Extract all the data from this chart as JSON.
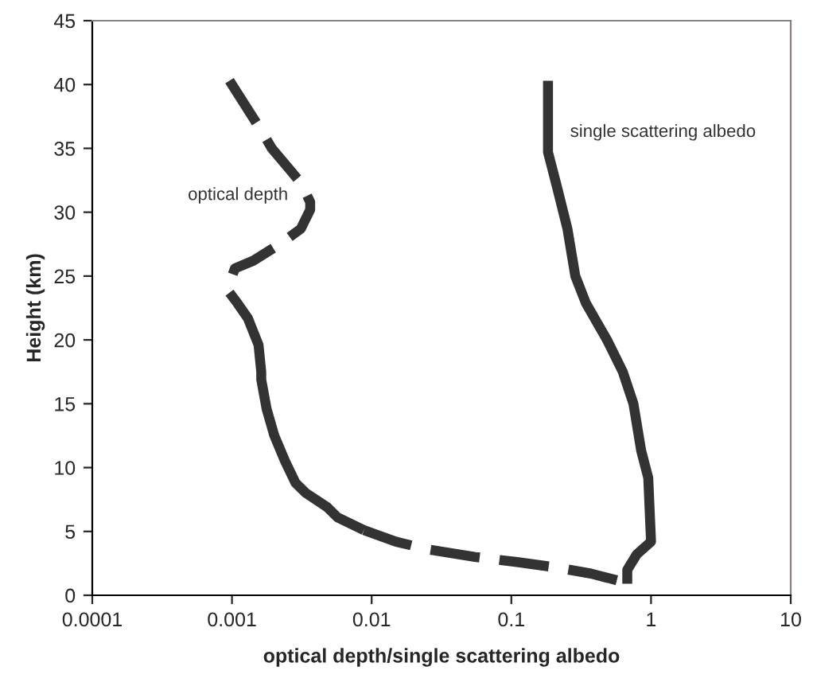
{
  "chart_data": {
    "type": "line",
    "xlabel": "optical depth/single scattering albedo",
    "ylabel": "Height (km)",
    "log": "x",
    "xlim": [
      0.0001,
      10
    ],
    "ylim": [
      0,
      45
    ],
    "xticks": [
      {
        "value": 0.0001,
        "label": "0.0001"
      },
      {
        "value": 0.001,
        "label": "0.001"
      },
      {
        "value": 0.01,
        "label": "0.01"
      },
      {
        "value": 0.1,
        "label": "0.1"
      },
      {
        "value": 1,
        "label": "1"
      },
      {
        "value": 10,
        "label": "10"
      }
    ],
    "yticks": [
      0,
      5,
      10,
      15,
      20,
      25,
      30,
      35,
      40,
      45
    ],
    "grid": false,
    "legend": false,
    "marker": "none",
    "series": [
      {
        "name": "optical depth",
        "color": "#333333",
        "line_style": "dashed",
        "x": [
          0.00096,
          0.00162,
          0.00193,
          0.00261,
          0.00311,
          0.00363,
          0.00363,
          0.00311,
          0.0022,
          0.00142,
          0.00105,
          0.00094,
          0.00096
        ],
        "values": [
          40.3,
          36.4,
          35,
          33.3,
          32.3,
          30.8,
          30.2,
          28.7,
          27.5,
          26.2,
          25.6,
          24.2,
          23.7
        ]
      },
      {
        "color": "#333333",
        "line_style": "solid",
        "x": [
          0.00096,
          0.00109,
          0.0013,
          0.00155,
          0.00162,
          0.00162,
          0.00177,
          0.00201,
          0.0024,
          0.00285,
          0.00339,
          0.0048,
          0.0057,
          0.0088
        ],
        "values": [
          23.7,
          22.9,
          21.7,
          19.6,
          17.5,
          16.9,
          14.6,
          12.5,
          10.5,
          8.8,
          8.0,
          6.9,
          6.1,
          5.1
        ]
      },
      {
        "color": "#333333",
        "line_style": "dashed",
        "x": [
          0.0088,
          0.0149,
          0.0251,
          0.055,
          0.11,
          0.203,
          0.372,
          0.656
        ],
        "values": [
          5.1,
          4.2,
          3.6,
          3.0,
          2.6,
          2.2,
          1.7,
          1.0
        ]
      },
      {
        "name": "single scattering albedo",
        "color": "#333333",
        "line_style": "solid",
        "x": [
          0.183,
          0.183,
          0.212,
          0.252,
          0.287,
          0.341,
          0.484,
          0.628,
          0.748,
          0.851,
          0.955,
          1.0,
          0.79,
          0.676,
          0.676
        ],
        "values": [
          40.3,
          34.7,
          32.0,
          28.7,
          25.0,
          22.9,
          20.0,
          17.5,
          15.0,
          11.3,
          9.2,
          4.2,
          3.2,
          2.0,
          0.9
        ]
      }
    ]
  }
}
